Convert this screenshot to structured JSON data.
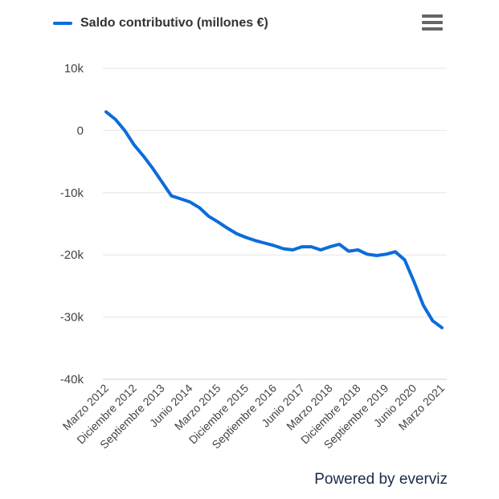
{
  "legend": {
    "label": "Saldo contributivo (millones €)",
    "color": "#0d6cd9"
  },
  "menu_icon": "hamburger-menu-icon",
  "credit": "Powered by everviz",
  "chart_data": {
    "type": "line",
    "title": "",
    "xlabel": "",
    "ylabel": "",
    "ylim": [
      -40000,
      10000
    ],
    "yticks": [
      10000,
      0,
      -10000,
      -20000,
      -30000,
      -40000
    ],
    "ytick_labels": [
      "10k",
      "0",
      "-10k",
      "-20k",
      "-30k",
      "-40k"
    ],
    "grid": true,
    "legend_position": "top-left",
    "categories": [
      "Marzo 2012",
      "Junio 2012",
      "Septiembre 2012",
      "Diciembre 2012",
      "Marzo 2013",
      "Junio 2013",
      "Septiembre 2013",
      "Diciembre 2013",
      "Marzo 2014",
      "Junio 2014",
      "Septiembre 2014",
      "Diciembre 2014",
      "Marzo 2015",
      "Junio 2015",
      "Septiembre 2015",
      "Diciembre 2015",
      "Marzo 2016",
      "Junio 2016",
      "Septiembre 2016",
      "Diciembre 2016",
      "Marzo 2017",
      "Junio 2017",
      "Septiembre 2017",
      "Diciembre 2017",
      "Marzo 2018",
      "Junio 2018",
      "Septiembre 2018",
      "Diciembre 2018",
      "Marzo 2019",
      "Junio 2019",
      "Septiembre 2019",
      "Diciembre 2019",
      "Marzo 2020",
      "Junio 2020",
      "Septiembre 2020",
      "Diciembre 2020",
      "Marzo 2021"
    ],
    "xtick_labels": [
      "Marzo 2012",
      "Diciembre 2012",
      "Septiembre 2013",
      "Junio 2014",
      "Marzo 2015",
      "Diciembre 2015",
      "Septiembre 2016",
      "Junio 2017",
      "Marzo 2018",
      "Diciembre 2018",
      "Septiembre 2019",
      "Junio 2020",
      "Marzo 2021"
    ],
    "series": [
      {
        "name": "Saldo contributivo (millones €)",
        "color": "#0d6cd9",
        "values": [
          3000,
          1800,
          0,
          -2300,
          -4100,
          -6100,
          -8300,
          -10500,
          -11000,
          -11500,
          -12400,
          -13800,
          -14700,
          -15700,
          -16600,
          -17200,
          -17700,
          -18100,
          -18500,
          -19000,
          -19200,
          -18700,
          -18700,
          -19200,
          -18700,
          -18300,
          -19400,
          -19200,
          -19900,
          -20100,
          -19900,
          -19500,
          -20800,
          -24300,
          -28100,
          -30600,
          -31700
        ]
      }
    ]
  }
}
